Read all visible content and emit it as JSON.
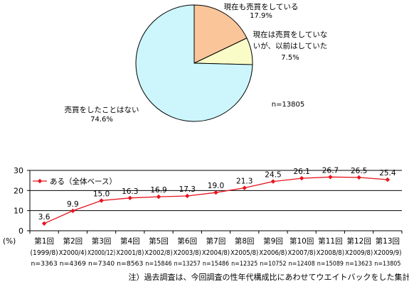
{
  "chart_data": [
    {
      "type": "pie",
      "sample": "n=13805",
      "slices": [
        {
          "label_lines": [
            "現在も売買をしている"
          ],
          "value_text": "17.9%",
          "value": 17.9,
          "color": "#fbc59a"
        },
        {
          "label_lines": [
            "現在は売買をしていな",
            "いが、以前はしていた"
          ],
          "value_text": "7.5%",
          "value": 7.5,
          "color": "#fafcc8"
        },
        {
          "label_lines": [
            "売買をしたことはない"
          ],
          "value_text": "74.6%",
          "value": 74.6,
          "color": "#ccf6fc"
        }
      ]
    },
    {
      "type": "line",
      "unit_label": "(%)",
      "ylim": [
        0,
        30
      ],
      "yticks": [
        0,
        10,
        20,
        30
      ],
      "grid": "horizontal",
      "legend": {
        "position": "top-left",
        "label": "ある（全体ベース）"
      },
      "color": "#e8131d",
      "categories": [
        {
          "round": "第1回",
          "period": "(1999/8)",
          "n": "n=3363"
        },
        {
          "round": "第2回",
          "period": "X2000/4)",
          "n": "n=4369"
        },
        {
          "round": "第3回",
          "period": "X2000/12)",
          "n": "n=7340"
        },
        {
          "round": "第4回",
          "period": "X2001/8)",
          "n": "n=8563"
        },
        {
          "round": "第5回",
          "period": "X2002/8)",
          "n": "n=15846"
        },
        {
          "round": "第6回",
          "period": "X2003/8)",
          "n": "n=13257"
        },
        {
          "round": "第7回",
          "period": "X2004/8)",
          "n": "n=15486"
        },
        {
          "round": "第8回",
          "period": "X2005/8)",
          "n": "n=12325"
        },
        {
          "round": "第9回",
          "period": "X2006/8)",
          "n": "n=10752"
        },
        {
          "round": "第10回",
          "period": "X2007/8)",
          "n": "n=12408"
        },
        {
          "round": "第11回",
          "period": "X2008/8)",
          "n": "n=15089"
        },
        {
          "round": "第12回",
          "period": "X2009/8)",
          "n": "n=13623"
        },
        {
          "round": "第13回",
          "period": "X2009/9)",
          "n": "n=13805"
        }
      ],
      "series": [
        {
          "name": "ある（全体ベース）",
          "values": [
            3.6,
            9.9,
            15.0,
            16.3,
            16.9,
            17.3,
            19.0,
            21.3,
            24.5,
            26.1,
            26.7,
            26.5,
            25.4
          ],
          "value_labels": [
            "3.6",
            "9.9",
            "15.0",
            "16.3",
            "16.9",
            "17.3",
            "19.0",
            "21.3",
            "24.5",
            "26.1",
            "26.7",
            "26.5",
            "25.4"
          ]
        }
      ]
    }
  ],
  "footnote": "注）過去調査は、今回調査の性年代構成比にあわせてウエイトバックをした集計値"
}
